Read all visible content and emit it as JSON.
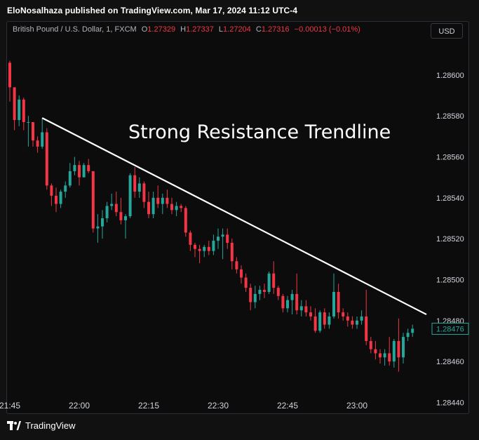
{
  "header": {
    "publisher": "EloNosalhaza published on TradingView.com, Mar 17, 2024 11:12 UTC-4"
  },
  "legend": {
    "symbol": "British Pound / U.S. Dollar, 1, FXCM",
    "o_label": "O",
    "o_value": "1.27329",
    "h_label": "H",
    "h_value": "1.27337",
    "l_label": "L",
    "l_value": "1.27204",
    "c_label": "C",
    "c_value": "1.27316",
    "change": "−0.00013 (−0.01%)"
  },
  "currency_button": "USD",
  "footer": {
    "brand": "TradingView"
  },
  "colors": {
    "up": "#26a69a",
    "down": "#f23645",
    "background": "#0c0c0c",
    "trendline": "#ffffff",
    "price_label": "#26a69a"
  },
  "chart_data": {
    "type": "candlestick",
    "title": "",
    "annotation": "Strong Resistance Trendline",
    "y_ticks": [
      "1.28600",
      "1.28580",
      "1.28560",
      "1.28540",
      "1.28520",
      "1.28500",
      "1.28480",
      "1.28460",
      "1.28440"
    ],
    "y_range": [
      1.28435,
      1.28625
    ],
    "x_ticks": [
      "21:45",
      "22:00",
      "22:15",
      "22:30",
      "22:45",
      "23:00"
    ],
    "x_tick_index": [
      0,
      15,
      30,
      45,
      60,
      75
    ],
    "grid": false,
    "current_price": "1.28476",
    "trendline": {
      "from": [
        7,
        1.28579
      ],
      "to": [
        90,
        1.28483
      ]
    },
    "candles": [
      [
        1.28606,
        1.28607,
        1.28587,
        1.28594
      ],
      [
        1.28594,
        1.28594,
        1.28573,
        1.28578
      ],
      [
        1.28578,
        1.2859,
        1.28575,
        1.28588
      ],
      [
        1.28588,
        1.28589,
        1.28573,
        1.28577
      ],
      [
        1.28577,
        1.2858,
        1.28565,
        1.28577
      ],
      [
        1.28577,
        1.28577,
        1.28565,
        1.28568
      ],
      [
        1.28568,
        1.2857,
        1.28562,
        1.28565
      ],
      [
        1.28565,
        1.28579,
        1.28564,
        1.28572
      ],
      [
        1.28572,
        1.28574,
        1.28544,
        1.28546
      ],
      [
        1.28546,
        1.28547,
        1.28536,
        1.28541
      ],
      [
        1.28541,
        1.28545,
        1.28533,
        1.28537
      ],
      [
        1.28537,
        1.28544,
        1.28535,
        1.28543
      ],
      [
        1.28543,
        1.28548,
        1.2854,
        1.28546
      ],
      [
        1.28546,
        1.28557,
        1.28545,
        1.28553
      ],
      [
        1.28553,
        1.2856,
        1.28551,
        1.28556
      ],
      [
        1.28556,
        1.28558,
        1.28546,
        1.2855
      ],
      [
        1.2855,
        1.28557,
        1.2855,
        1.28556
      ],
      [
        1.28556,
        1.28559,
        1.28552,
        1.28553
      ],
      [
        1.28553,
        1.28553,
        1.28523,
        1.28525
      ],
      [
        1.28525,
        1.28532,
        1.28518,
        1.28526
      ],
      [
        1.28526,
        1.28534,
        1.2852,
        1.2853
      ],
      [
        1.2853,
        1.28538,
        1.28528,
        1.28536
      ],
      [
        1.28536,
        1.28542,
        1.28534,
        1.28537
      ],
      [
        1.28537,
        1.28543,
        1.28531,
        1.28533
      ],
      [
        1.28533,
        1.2854,
        1.28527,
        1.28529
      ],
      [
        1.28529,
        1.28532,
        1.2852,
        1.28531
      ],
      [
        1.28531,
        1.28552,
        1.2853,
        1.28551
      ],
      [
        1.28551,
        1.28555,
        1.2854,
        1.28543
      ],
      [
        1.28543,
        1.2855,
        1.2854,
        1.28547
      ],
      [
        1.28547,
        1.28548,
        1.28535,
        1.28538
      ],
      [
        1.28538,
        1.28543,
        1.2853,
        1.28532
      ],
      [
        1.28532,
        1.28543,
        1.2853,
        1.2854
      ],
      [
        1.2854,
        1.28546,
        1.28535,
        1.28537
      ],
      [
        1.28537,
        1.28542,
        1.28532,
        1.2854
      ],
      [
        1.2854,
        1.28544,
        1.28535,
        1.28537
      ],
      [
        1.28537,
        1.2854,
        1.28532,
        1.28534
      ],
      [
        1.28534,
        1.28538,
        1.28531,
        1.28536
      ],
      [
        1.28536,
        1.28537,
        1.28533,
        1.28535
      ],
      [
        1.28535,
        1.28536,
        1.28521,
        1.28523
      ],
      [
        1.28523,
        1.28524,
        1.28514,
        1.28517
      ],
      [
        1.28517,
        1.28518,
        1.28511,
        1.28515
      ],
      [
        1.28515,
        1.28517,
        1.28508,
        1.28514
      ],
      [
        1.28514,
        1.28517,
        1.28511,
        1.28516
      ],
      [
        1.28516,
        1.28519,
        1.28512,
        1.28514
      ],
      [
        1.28514,
        1.28522,
        1.28512,
        1.28519
      ],
      [
        1.28519,
        1.28525,
        1.28515,
        1.28521
      ],
      [
        1.28521,
        1.28525,
        1.2851,
        1.28522
      ],
      [
        1.28522,
        1.28525,
        1.28515,
        1.28518
      ],
      [
        1.28518,
        1.2852,
        1.28505,
        1.28509
      ],
      [
        1.28509,
        1.28511,
        1.28503,
        1.28505
      ],
      [
        1.28505,
        1.28507,
        1.28498,
        1.28501
      ],
      [
        1.28501,
        1.28503,
        1.28494,
        1.28496
      ],
      [
        1.28496,
        1.28498,
        1.28485,
        1.28489
      ],
      [
        1.28489,
        1.28497,
        1.28486,
        1.28493
      ],
      [
        1.28493,
        1.28497,
        1.2849,
        1.28495
      ],
      [
        1.28495,
        1.28498,
        1.28491,
        1.28494
      ],
      [
        1.28494,
        1.28504,
        1.28493,
        1.28503
      ],
      [
        1.28503,
        1.28509,
        1.28493,
        1.28496
      ],
      [
        1.28496,
        1.28497,
        1.2849,
        1.28492
      ],
      [
        1.28492,
        1.28493,
        1.28484,
        1.28486
      ],
      [
        1.28486,
        1.28492,
        1.28484,
        1.2849
      ],
      [
        1.2849,
        1.28495,
        1.28483,
        1.28493
      ],
      [
        1.28493,
        1.28503,
        1.28483,
        1.28485
      ],
      [
        1.28485,
        1.2849,
        1.28482,
        1.28487
      ],
      [
        1.28487,
        1.2849,
        1.28482,
        1.28484
      ],
      [
        1.28484,
        1.28487,
        1.2848,
        1.28482
      ],
      [
        1.28482,
        1.28486,
        1.28474,
        1.28475
      ],
      [
        1.28475,
        1.28485,
        1.28474,
        1.28484
      ],
      [
        1.28484,
        1.28486,
        1.28476,
        1.28478
      ],
      [
        1.28478,
        1.28484,
        1.28476,
        1.28482
      ],
      [
        1.28482,
        1.28503,
        1.28481,
        1.28494
      ],
      [
        1.28494,
        1.28498,
        1.28481,
        1.28484
      ],
      [
        1.28484,
        1.28486,
        1.2848,
        1.28482
      ],
      [
        1.28482,
        1.28484,
        1.28477,
        1.2848
      ],
      [
        1.2848,
        1.28482,
        1.28476,
        1.28478
      ],
      [
        1.28478,
        1.28482,
        1.28476,
        1.2848
      ],
      [
        1.2848,
        1.28485,
        1.28478,
        1.28482
      ],
      [
        1.28482,
        1.28495,
        1.28468,
        1.2847
      ],
      [
        1.2847,
        1.28472,
        1.28464,
        1.28466
      ],
      [
        1.28466,
        1.2847,
        1.28461,
        1.28464
      ],
      [
        1.28464,
        1.28466,
        1.28459,
        1.28462
      ],
      [
        1.28462,
        1.28466,
        1.28458,
        1.28464
      ],
      [
        1.28464,
        1.28472,
        1.28458,
        1.2846
      ],
      [
        1.2846,
        1.28471,
        1.28457,
        1.2847
      ],
      [
        1.2847,
        1.28481,
        1.28455,
        1.28462
      ],
      [
        1.28462,
        1.28474,
        1.28459,
        1.28472
      ],
      [
        1.28472,
        1.28476,
        1.2847,
        1.28474
      ],
      [
        1.28474,
        1.28478,
        1.28472,
        1.28476
      ]
    ]
  }
}
